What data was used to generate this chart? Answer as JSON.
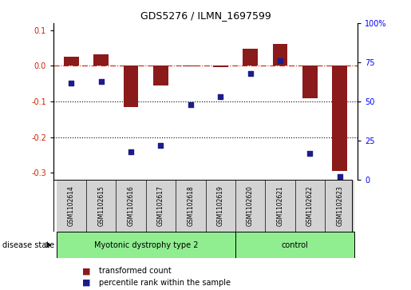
{
  "title": "GDS5276 / ILMN_1697599",
  "samples": [
    "GSM1102614",
    "GSM1102615",
    "GSM1102616",
    "GSM1102617",
    "GSM1102618",
    "GSM1102619",
    "GSM1102620",
    "GSM1102621",
    "GSM1102622",
    "GSM1102623"
  ],
  "red_bars": [
    0.025,
    0.032,
    -0.115,
    -0.055,
    -0.002,
    -0.003,
    0.048,
    0.062,
    -0.09,
    -0.295
  ],
  "blue_dots_pct": [
    62,
    63,
    18,
    22,
    48,
    53,
    68,
    76,
    17,
    2
  ],
  "groups": [
    {
      "label": "Myotonic dystrophy type 2",
      "start": 0,
      "end": 5
    },
    {
      "label": "control",
      "start": 6,
      "end": 9
    }
  ],
  "ylim_left": [
    -0.32,
    0.12
  ],
  "ylim_right": [
    0,
    100
  ],
  "left_yticks": [
    -0.3,
    -0.2,
    -0.1,
    0.0,
    0.1
  ],
  "right_yticks": [
    0,
    25,
    50,
    75,
    100
  ],
  "bar_color": "#8B1A1A",
  "dot_color": "#1C1C8B",
  "legend_labels": [
    "transformed count",
    "percentile rank within the sample"
  ],
  "disease_state_label": "disease state",
  "background_label_row": "#D3D3D3",
  "background_group_row": "#90EE90"
}
